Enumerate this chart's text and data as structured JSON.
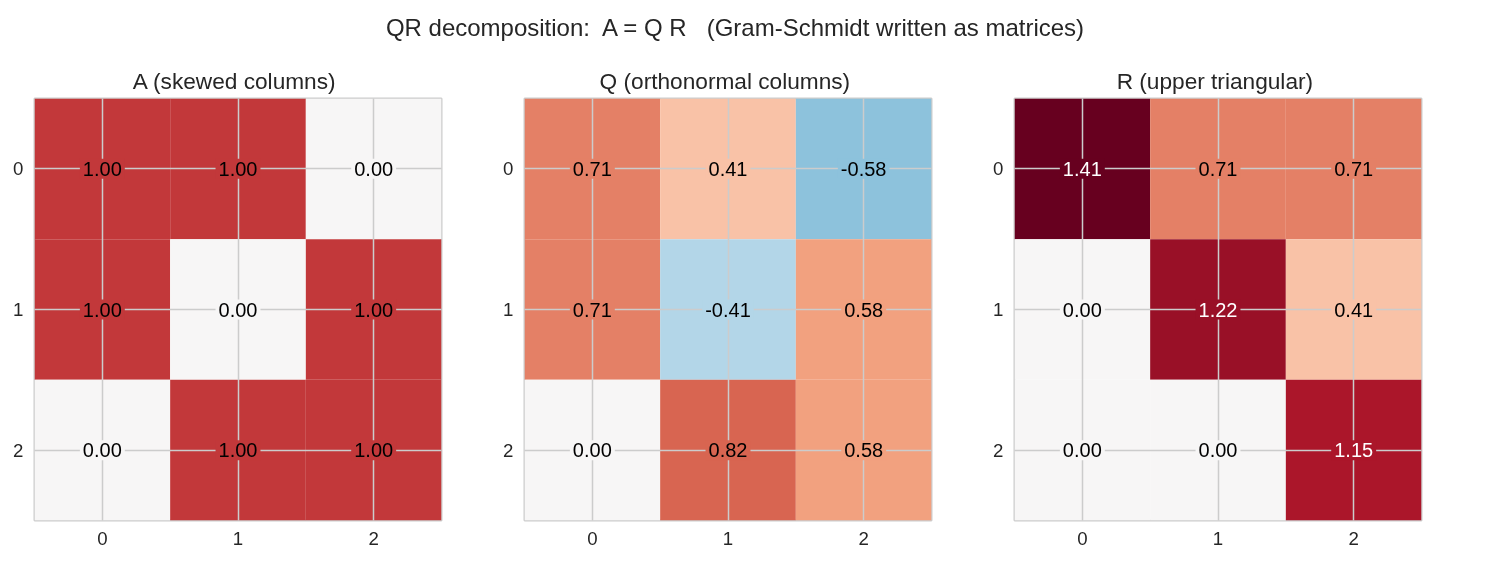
{
  "chart_data": [
    {
      "type": "heatmap",
      "title": "A  (skewed columns)",
      "annotations": [
        "QR decomposition:  A = Q R   (Gram-Schmidt written as matrices)"
      ],
      "categories": [
        "0",
        "1",
        "2"
      ],
      "y_categories": [
        "0",
        "1",
        "2"
      ],
      "grid": true,
      "cells": [
        [
          1.0,
          1.0,
          0.0
        ],
        [
          1.0,
          0.0,
          1.0
        ],
        [
          0.0,
          1.0,
          1.0
        ]
      ],
      "cell_labels": [
        [
          "1.00",
          "1.00",
          "0.00"
        ],
        [
          "1.00",
          "0.00",
          "1.00"
        ],
        [
          "0.00",
          "1.00",
          "1.00"
        ]
      ]
    },
    {
      "type": "heatmap",
      "title": "Q  (orthonormal columns)",
      "categories": [
        "0",
        "1",
        "2"
      ],
      "y_categories": [
        "0",
        "1",
        "2"
      ],
      "grid": true,
      "cells": [
        [
          0.71,
          0.41,
          -0.58
        ],
        [
          0.71,
          -0.41,
          0.58
        ],
        [
          0.0,
          0.82,
          0.58
        ]
      ],
      "cell_labels": [
        [
          "0.71",
          "0.41",
          "-0.58"
        ],
        [
          "0.71",
          "-0.41",
          "0.58"
        ],
        [
          "0.00",
          "0.82",
          "0.58"
        ]
      ]
    },
    {
      "type": "heatmap",
      "title": "R  (upper triangular)",
      "categories": [
        "0",
        "1",
        "2"
      ],
      "y_categories": [
        "0",
        "1",
        "2"
      ],
      "grid": true,
      "cells": [
        [
          1.41,
          0.71,
          0.71
        ],
        [
          0.0,
          1.22,
          0.41
        ],
        [
          0.0,
          0.0,
          1.15
        ]
      ],
      "cell_labels": [
        [
          "1.41",
          "0.71",
          "0.71"
        ],
        [
          "0.00",
          "1.22",
          "0.41"
        ],
        [
          "0.00",
          "0.00",
          "1.15"
        ]
      ]
    }
  ]
}
